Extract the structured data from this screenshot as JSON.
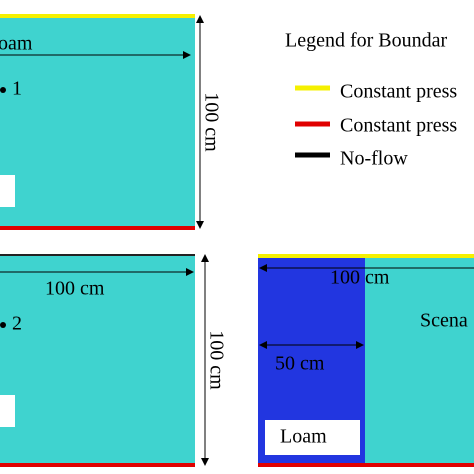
{
  "panels": {
    "top_left": {
      "label_top": "oam",
      "point_label": "1",
      "height_label": "100 cm"
    },
    "bottom_left": {
      "width_label": "100 cm",
      "point_label": "2",
      "height_label": "100 cm"
    },
    "bottom_right": {
      "width_label": "100 cm",
      "scenario_label": "Scena",
      "half_width_label": "50 cm",
      "material_label": "Loam"
    }
  },
  "legend": {
    "title": "Legend  for Boundar",
    "items": [
      "Constant press",
      "Constant press",
      "No-flow"
    ]
  }
}
